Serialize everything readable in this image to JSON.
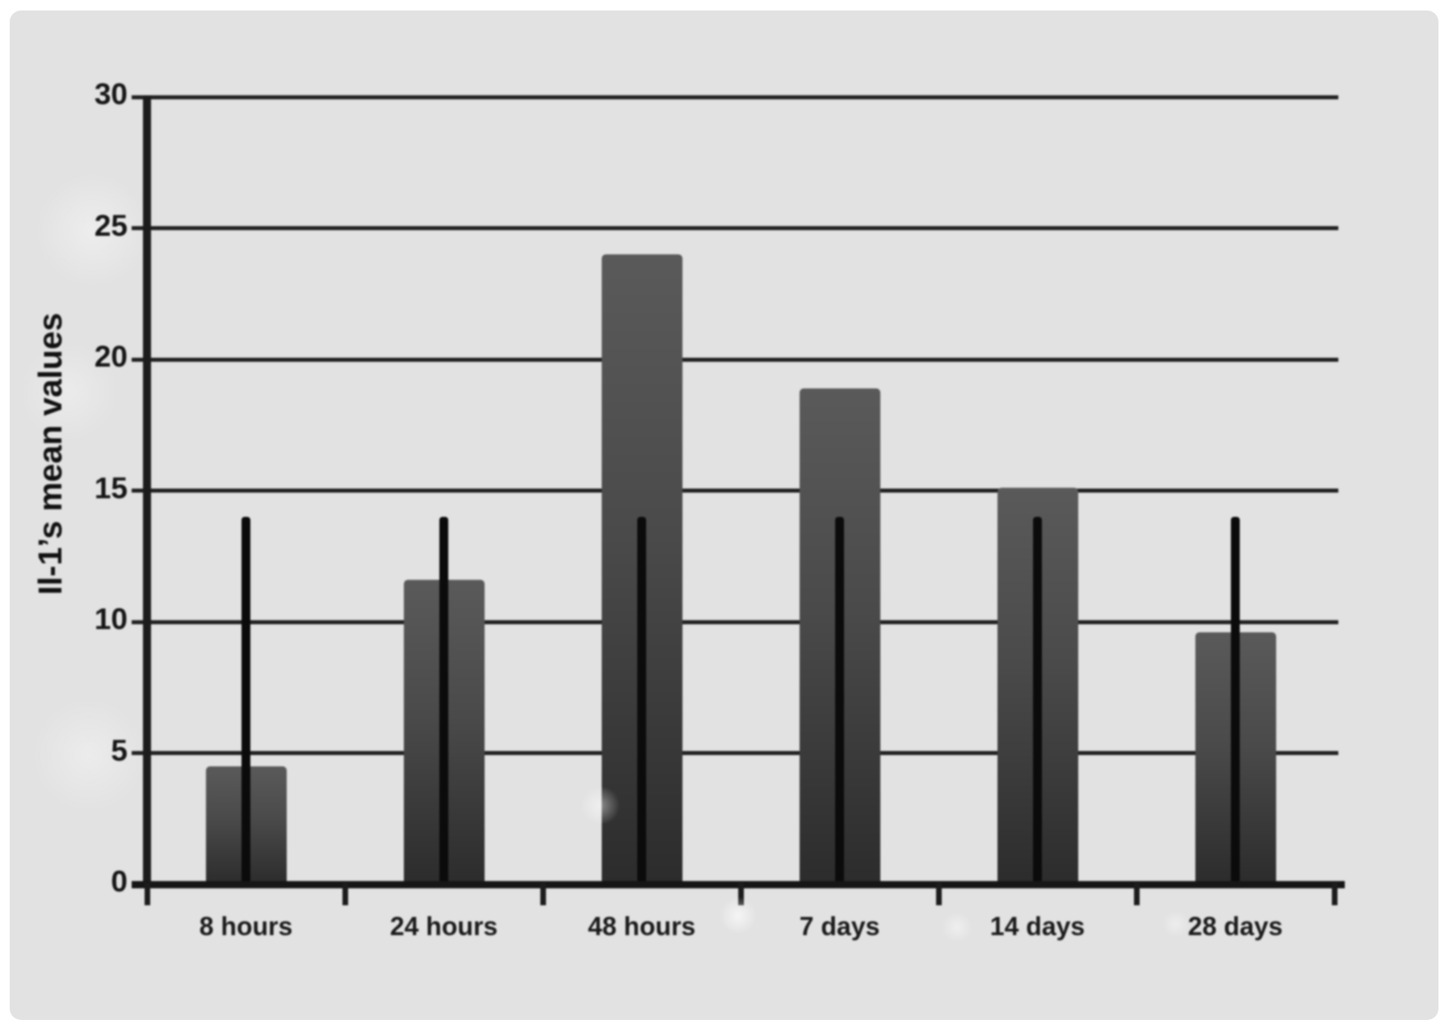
{
  "chart_data": {
    "type": "bar",
    "title": "",
    "xlabel": "",
    "ylabel": "Il-1’s mean values",
    "categories": [
      "8 hours",
      "24 hours",
      "48 hours",
      "7 days",
      "14 days",
      "28 days"
    ],
    "values": [
      4.5,
      11.6,
      24.0,
      18.9,
      15.1,
      9.6
    ],
    "error_lines": {
      "description": "black vertical line centered on each bar, drawn from the baseline (0) up to its top value",
      "tops": [
        14,
        14,
        14,
        14,
        14,
        14
      ]
    },
    "yticks": [
      0,
      5,
      10,
      15,
      20,
      25,
      30
    ],
    "ylim": [
      0,
      30
    ],
    "grid": "horizontal-on",
    "legend": "none",
    "colors": {
      "background": "#e2e2e2",
      "bar_top": "#5a5a5a",
      "bar_bottom": "#2c2c2c",
      "error_line": "#0b0b0b",
      "axis_and_grid": "#1c1c1c",
      "text": "#161616"
    }
  }
}
